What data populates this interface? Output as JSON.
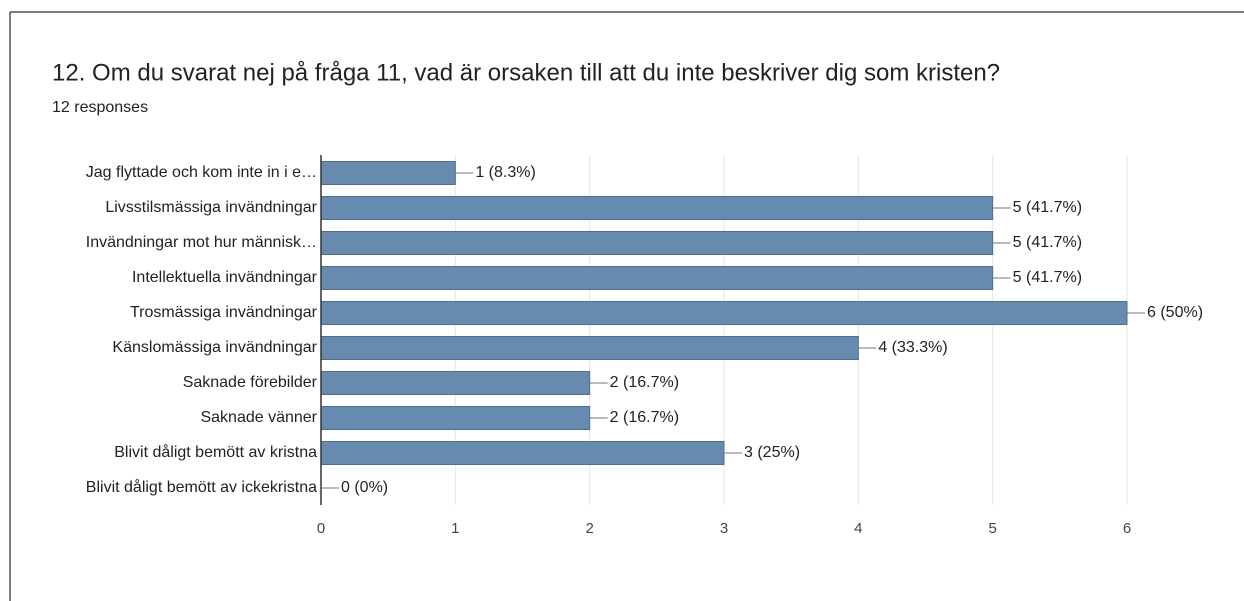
{
  "chart_data": {
    "type": "bar",
    "orientation": "horizontal",
    "title": "12. Om du svarat nej på fråga 11, vad är orsaken till att du inte beskriver dig som kristen?",
    "subtitle": "12 responses",
    "categories": [
      "Jag flyttade och kom inte in i e…",
      "Livsstilsmässiga invändningar",
      "Invändningar mot hur människ…",
      "Intellektuella invändningar",
      "Trosmässiga invändningar",
      "Känslomässiga invändningar",
      "Saknade förebilder",
      "Saknade vänner",
      "Blivit dåligt bemött av kristna",
      "Blivit dåligt bemött av ickekristna"
    ],
    "values": [
      1,
      5,
      5,
      5,
      6,
      4,
      2,
      2,
      3,
      0
    ],
    "value_labels": [
      "1 (8.3%)",
      "5 (41.7%)",
      "5 (41.7%)",
      "5 (41.7%)",
      "6 (50%)",
      "4 (33.3%)",
      "2 (16.7%)",
      "2 (16.7%)",
      "3 (25%)",
      "0 (0%)"
    ],
    "color": "#678bae",
    "xlim": [
      0,
      6
    ],
    "xticks": [
      0,
      1,
      2,
      3,
      4,
      5,
      6
    ],
    "grid": true
  }
}
